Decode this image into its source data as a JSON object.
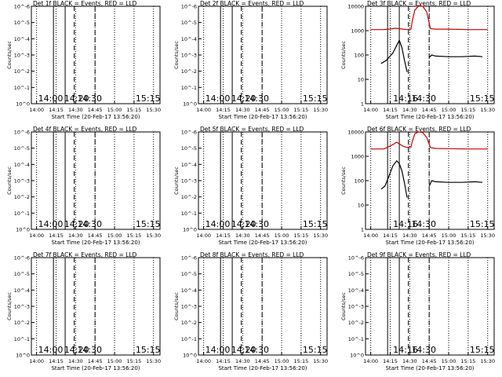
{
  "chart_data": [
    {
      "type": "line",
      "title": "Det 1f BLACK = Events, RED = LLD",
      "ylabel": "Counts/sec",
      "xlabel": "Start Time (20-Feb-17 13:56:20)",
      "ytick_labels": [
        "10^0",
        "10^-1",
        "10^-2",
        "10^-3",
        "10^-4",
        "10^-5",
        "10^-6"
      ],
      "xtick_labels": [
        "14:00",
        "14:15",
        "14:30",
        "14:45",
        "15:00",
        "15:15",
        "15:30"
      ],
      "markers": {
        "E": [
          "14:00",
          "15:15"
        ],
        "F": [
          "14:20"
        ],
        "S": [
          "14:30"
        ]
      },
      "series": []
    },
    {
      "type": "line",
      "title": "Det 2f BLACK = Events, RED = LLD",
      "ylabel": "Counts/sec",
      "xlabel": "Start Time (20-Feb-17 13:56:20)",
      "ytick_labels": [
        "10^0",
        "10^-1",
        "10^-2",
        "10^-3",
        "10^-4",
        "10^-5",
        "10^-6"
      ],
      "xtick_labels": [
        "14:00",
        "14:15",
        "14:30",
        "14:45",
        "15:00",
        "15:15",
        "15:30"
      ],
      "markers": {
        "E": [
          "14:00",
          "15:15"
        ],
        "F": [
          "14:20"
        ],
        "S": [
          "14:30"
        ]
      },
      "series": []
    },
    {
      "type": "line",
      "title": "Det 3f BLACK = Events, RED = LLD",
      "ylabel": "Counts/sec",
      "xlabel": "Start Time (20-Feb-17 13:56:20)",
      "ytick_labels": [
        "1",
        "10",
        "100",
        "1000",
        "10000"
      ],
      "xtick_labels": [
        "14:00",
        "14:15",
        "14:30",
        "14:45",
        "15:00",
        "15:15",
        "15:30"
      ],
      "markers": {
        "F": [
          "14:16"
        ],
        "S": [
          "14:30"
        ],
        "E": [
          "15:15"
        ]
      },
      "series": [
        {
          "color": "#cc0000",
          "x": [
            "14:00",
            "14:10",
            "14:14",
            "14:17",
            "14:19",
            "14:22",
            "14:25",
            "14:28",
            "14:31",
            "14:32",
            "14:34",
            "14:37",
            "14:40",
            "14:43",
            "14:46",
            "14:50",
            "15:00",
            "15:15",
            "15:30"
          ],
          "y": [
            1100,
            1100,
            1150,
            1200,
            1250,
            1200,
            1150,
            1100,
            1150,
            2500,
            7000,
            10500,
            10000,
            6000,
            1200,
            1150,
            1150,
            1100,
            1100
          ]
        },
        {
          "color": "#000000",
          "x": [
            "14:08",
            "14:12",
            "14:17",
            "14:20",
            "14:22",
            "14:24",
            "14:26",
            "14:28"
          ],
          "y": [
            45,
            60,
            120,
            250,
            400,
            200,
            60,
            20
          ]
        },
        {
          "color": "#000000",
          "x": [
            "14:45",
            "14:47",
            "14:50",
            "15:00",
            "15:10",
            "15:20",
            "15:26"
          ],
          "y": [
            80,
            100,
            90,
            85,
            85,
            90,
            85
          ]
        }
      ]
    },
    {
      "type": "line",
      "title": "Det 4f BLACK = Events, RED = LLD",
      "ylabel": "Counts/sec",
      "xlabel": "Start Time (20-Feb-17 13:56:20)",
      "ytick_labels": [
        "10^0",
        "10^-1",
        "10^-2",
        "10^-3",
        "10^-4",
        "10^-5",
        "10^-6"
      ],
      "xtick_labels": [
        "14:00",
        "14:15",
        "14:30",
        "14:45",
        "15:00",
        "15:15",
        "15:30"
      ],
      "markers": {
        "E": [
          "14:00",
          "15:15"
        ],
        "F": [
          "14:20"
        ],
        "S": [
          "14:30"
        ]
      },
      "series": []
    },
    {
      "type": "line",
      "title": "Det 5f BLACK = Events, RED = LLD",
      "ylabel": "Counts/sec",
      "xlabel": "Start Time (20-Feb-17 13:56:20)",
      "ytick_labels": [
        "10^0",
        "10^-1",
        "10^-2",
        "10^-3",
        "10^-4",
        "10^-5",
        "10^-6"
      ],
      "xtick_labels": [
        "14:00",
        "14:15",
        "14:30",
        "14:45",
        "15:00",
        "15:15",
        "15:30"
      ],
      "markers": {
        "E": [
          "14:00",
          "15:15"
        ],
        "F": [
          "14:20"
        ],
        "S": [
          "14:30"
        ]
      },
      "series": []
    },
    {
      "type": "line",
      "title": "Det 6f BLACK = Events, RED = LLD",
      "ylabel": "Counts/sec",
      "xlabel": "Start Time (20-Feb-17 13:56:20)",
      "ytick_labels": [
        "1",
        "10",
        "100",
        "1000",
        "10000"
      ],
      "xtick_labels": [
        "14:00",
        "14:15",
        "14:30",
        "14:45",
        "15:00",
        "15:15",
        "15:30"
      ],
      "markers": {
        "F": [
          "14:16"
        ],
        "S": [
          "14:30"
        ],
        "E": [
          "15:15"
        ]
      },
      "series": [
        {
          "color": "#cc0000",
          "x": [
            "14:00",
            "14:10",
            "14:14",
            "14:17",
            "14:20",
            "14:22",
            "14:25",
            "14:28",
            "14:31",
            "14:32",
            "14:34",
            "14:37",
            "14:40",
            "14:43",
            "14:46",
            "14:50",
            "15:00",
            "15:15",
            "15:30"
          ],
          "y": [
            2000,
            2000,
            2500,
            3000,
            3800,
            3200,
            2600,
            2300,
            2400,
            4000,
            8500,
            10000,
            9500,
            6000,
            2300,
            2100,
            2050,
            2000,
            2000
          ]
        },
        {
          "color": "#000000",
          "x": [
            "14:08",
            "14:11",
            "14:14",
            "14:17",
            "14:20",
            "14:22",
            "14:24",
            "14:26",
            "14:28"
          ],
          "y": [
            45,
            60,
            150,
            400,
            650,
            500,
            250,
            80,
            20
          ]
        },
        {
          "color": "#000000",
          "x": [
            "14:45",
            "14:47",
            "14:50",
            "15:00",
            "15:10",
            "15:20",
            "15:26"
          ],
          "y": [
            60,
            100,
            90,
            85,
            85,
            90,
            85
          ]
        }
      ]
    },
    {
      "type": "line",
      "title": "Det 7f BLACK = Events, RED = LLD",
      "ylabel": "Counts/sec",
      "xlabel": "Start Time (20-Feb-17 13:56:20)",
      "ytick_labels": [
        "10^0",
        "10^-1",
        "10^-2",
        "10^-3",
        "10^-4",
        "10^-5",
        "10^-6"
      ],
      "xtick_labels": [
        "14:00",
        "14:15",
        "14:30",
        "14:45",
        "15:00",
        "15:15",
        "15:30"
      ],
      "markers": {
        "E": [
          "14:00",
          "15:15"
        ],
        "F": [
          "14:20"
        ],
        "S": [
          "14:30"
        ]
      },
      "series": []
    },
    {
      "type": "line",
      "title": "Det 8f BLACK = Events, RED = LLD",
      "ylabel": "Counts/sec",
      "xlabel": "Start Time (20-Feb-17 13:56:20)",
      "ytick_labels": [
        "10^0",
        "10^-1",
        "10^-2",
        "10^-3",
        "10^-4",
        "10^-5",
        "10^-6"
      ],
      "xtick_labels": [
        "14:00",
        "14:15",
        "14:30",
        "14:45",
        "15:00",
        "15:15",
        "15:30"
      ],
      "markers": {
        "E": [
          "14:00",
          "15:15"
        ],
        "F": [
          "14:20"
        ],
        "S": [
          "14:30"
        ]
      },
      "series": []
    },
    {
      "type": "line",
      "title": "Det 9f BLACK = Events, RED = LLD",
      "ylabel": "Counts/sec",
      "xlabel": "Start Time (20-Feb-17 13:56:20)",
      "ytick_labels": [
        "10^0",
        "10^-1",
        "10^-2",
        "10^-3",
        "10^-4",
        "10^-5",
        "10^-6"
      ],
      "xtick_labels": [
        "14:00",
        "14:15",
        "14:30",
        "14:45",
        "15:00",
        "15:15",
        "15:30"
      ],
      "markers": {
        "F": [
          "14:16"
        ],
        "S": [
          "14:30"
        ],
        "E": [
          "15:15"
        ]
      },
      "series": []
    }
  ]
}
